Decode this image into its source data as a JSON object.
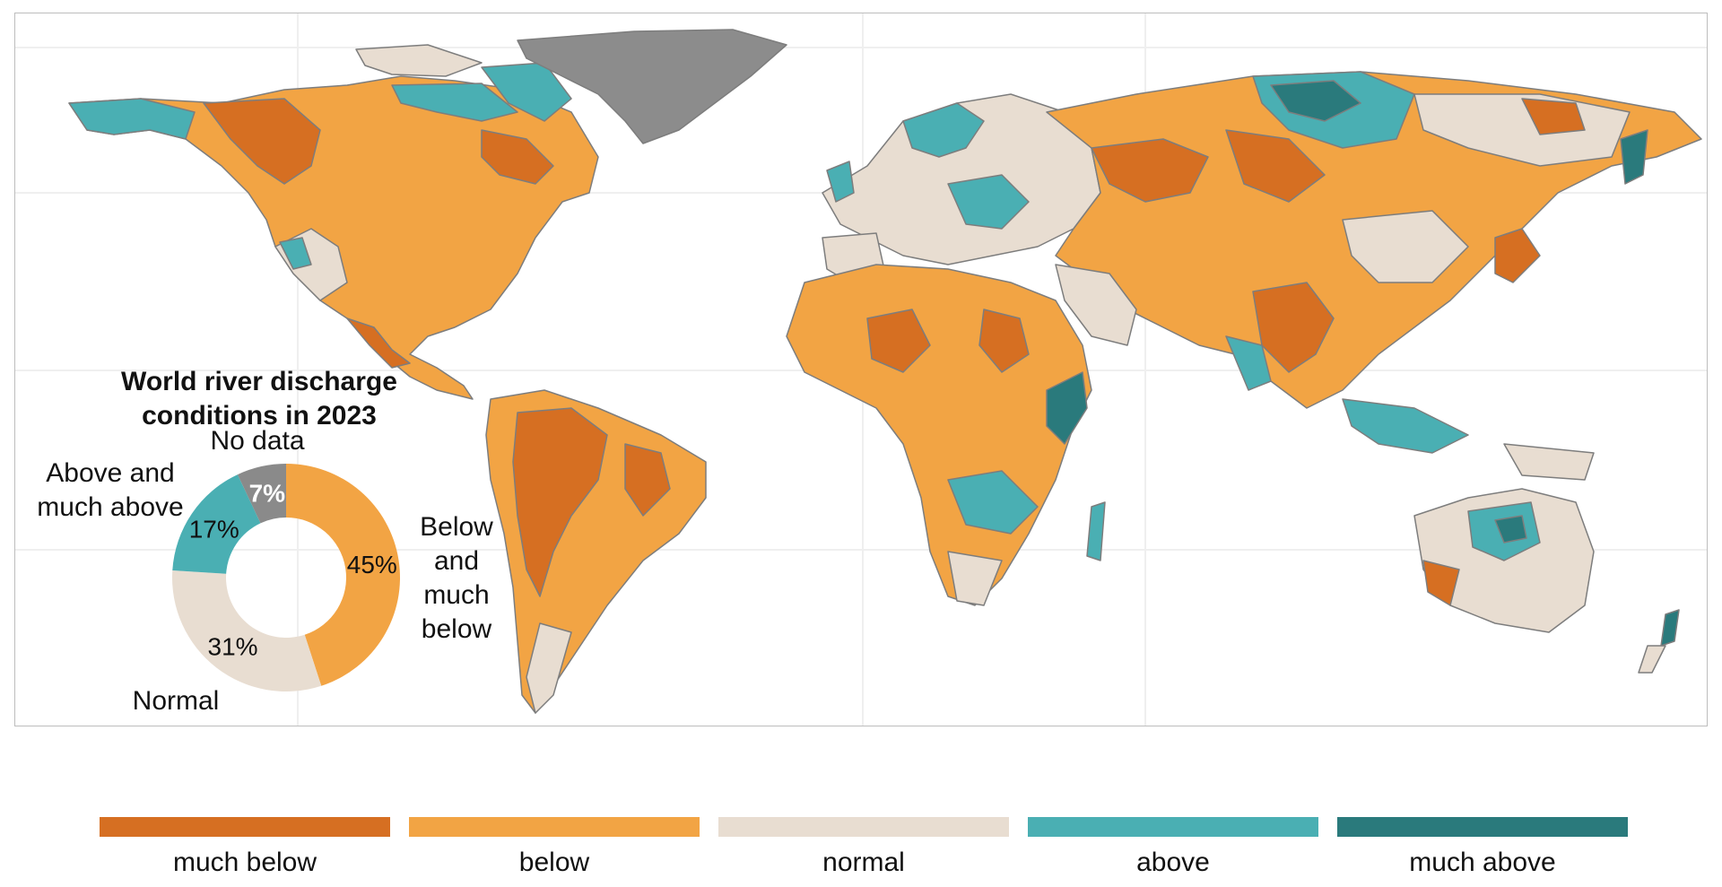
{
  "chart_data": {
    "type": "pie",
    "title": "World river discharge conditions in 2023",
    "categories": [
      "Below and much below",
      "Normal",
      "Above and much above",
      "No data"
    ],
    "values": [
      45,
      31,
      17,
      7
    ],
    "value_labels": [
      "45%",
      "31%",
      "17%",
      "7%"
    ],
    "colors": [
      "#f2a444",
      "#e8ddd1",
      "#4aafb3",
      "#8a8a8a"
    ],
    "donut": true
  },
  "map": {
    "subject": "river basins colored by 2023 discharge condition",
    "colors": {
      "land_outline": "#7d7d7d",
      "greenland_no_data": "#8c8c8c",
      "ocean": "#ffffff"
    }
  },
  "legend": {
    "items": [
      {
        "label": "much below",
        "color": "#d66f22"
      },
      {
        "label": "below",
        "color": "#f2a444"
      },
      {
        "label": "normal",
        "color": "#e8ddd1"
      },
      {
        "label": "above",
        "color": "#4aafb3"
      },
      {
        "label": "much above",
        "color": "#2a7a7c"
      }
    ]
  }
}
